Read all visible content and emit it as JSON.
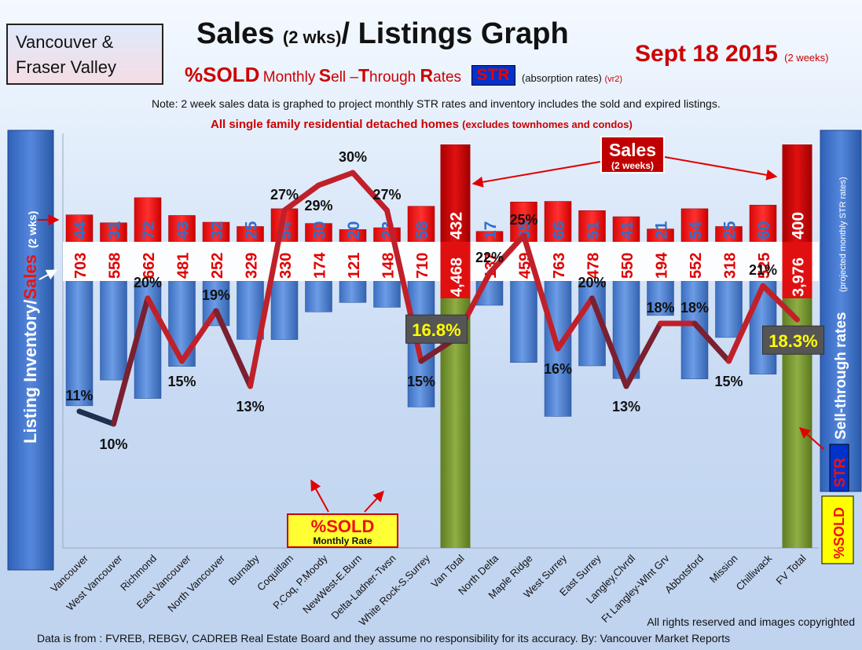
{
  "header": {
    "logo_line1": "Vancouver &",
    "logo_line2": "Fraser Valley",
    "title_a": "Sales",
    "title_b": "(2 wks)",
    "title_c": "/ Listings Graph",
    "date": "Sept 18 2015",
    "date_note": "(2 weeks)",
    "subtitle_sold": "%SOLD",
    "subtitle_monthly": "Monthly",
    "sub_S": "S",
    "sub_ell": "ell –",
    "sub_T": "T",
    "sub_hrough": "hrough",
    "sub_R": "R",
    "sub_ates": "ates",
    "str_label": "STR",
    "str_desc": "(absorption rates)",
    "str_vr": "(vr2)",
    "note": "Note: 2 week sales data is graphed to project monthly STR rates and inventory includes the sold and expired listings.",
    "subnote_main": "All single family residential detached homes",
    "subnote_paren": "(excludes townhomes and condos)"
  },
  "chart_data": {
    "type": "bar",
    "categories": [
      "Vancouver",
      "West Vancouver",
      "Richmond",
      "East Vancouver",
      "North Vancouver",
      "Burnaby",
      "Coquitlam",
      "P.Coq, P.Moody",
      "NewWest-E.Burn",
      "Delta-Ladner-Twsn",
      "White Rock-S.Surrey",
      "Van Total",
      "North Delta",
      "Maple Ridge",
      "West Surrey",
      "East Surrey",
      "Langley,Clvrdl",
      "Ft Langley-Wlnt Grv",
      "Abbotsford",
      "Mission",
      "Chilliwack",
      "FV Total"
    ],
    "sales_2wks": [
      44,
      31,
      72,
      43,
      32,
      25,
      54,
      30,
      20,
      23,
      58,
      432,
      17,
      65,
      66,
      51,
      41,
      21,
      54,
      25,
      60,
      400
    ],
    "listing_inventory": [
      703,
      558,
      662,
      481,
      252,
      329,
      330,
      174,
      121,
      148,
      710,
      4468,
      137,
      459,
      763,
      478,
      550,
      194,
      552,
      318,
      525,
      3976
    ],
    "inventory_labels": [
      "703",
      "558",
      "662",
      "481",
      "252",
      "329",
      "330",
      "174",
      "121",
      "148",
      "710",
      "4,468",
      "137",
      "459",
      "763",
      "478",
      "550",
      "194",
      "552",
      "318",
      "525",
      "3,976"
    ],
    "sold_percent": [
      11,
      10,
      20,
      15,
      19,
      13,
      27,
      29,
      30,
      27,
      15,
      16.8,
      22,
      25,
      16,
      20,
      13,
      18,
      18,
      15,
      21,
      18.3
    ],
    "sold_percent_labels": [
      "11%",
      "10%",
      "20%",
      "15%",
      "19%",
      "13%",
      "27%",
      "29%",
      "30%",
      "27%",
      "15%",
      "16.8%",
      "22%",
      "25%",
      "16%",
      "20%",
      "13%",
      "18%",
      "18%",
      "15%",
      "21%",
      "18.3%"
    ],
    "total_indices": [
      11,
      21
    ],
    "sales_callout": "Sales",
    "sales_callout_sub": "(2 weeks)",
    "sold_callout": "%SOLD",
    "sold_callout_sub": "Monthly Rate",
    "left_axis_a": "Listing Inventory/",
    "left_axis_b": "Sales",
    "left_axis_c": "(2 wks)",
    "right_axis_a": "Sell-through rates",
    "right_axis_b": "(projected monthly STR rates)",
    "right_str": "STR",
    "right_sold": "%SOLD",
    "colors": {
      "sales_bar": "#ee1111",
      "inventory_bar": "#4f86d6",
      "total_bar": "#7a9a33",
      "line": "#c0202a",
      "line_dark": "#1e3050"
    }
  },
  "footer": {
    "rights": "All rights reserved and  images copyrighted",
    "source": "Data is  from : FVREB, REBGV, CADREB Real Estate Board and they assume  no responsibility  for its accuracy. By: Vancouver Market Reports"
  }
}
